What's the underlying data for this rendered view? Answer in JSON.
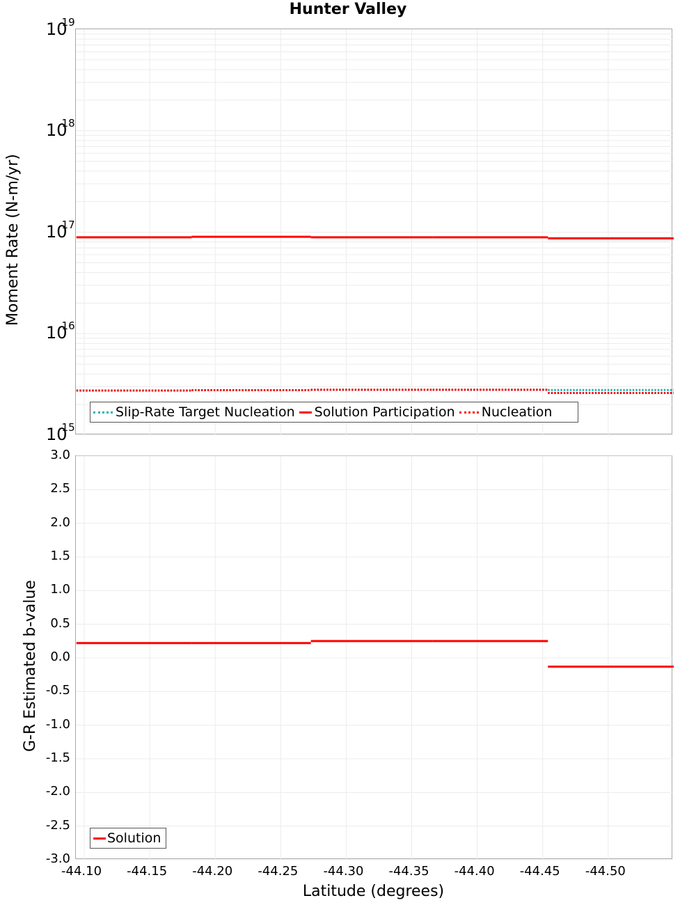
{
  "title": "Hunter Valley",
  "colors": {
    "solution": "#ff0000",
    "target": "#1fb4b4",
    "grid": "#ececec",
    "frame": "#a8a8a8"
  },
  "top_chart": {
    "ylabel": "Moment Rate (N-m/yr)",
    "yticks": [
      {
        "base": "10",
        "exp": "19"
      },
      {
        "base": "10",
        "exp": "18"
      },
      {
        "base": "10",
        "exp": "17"
      },
      {
        "base": "10",
        "exp": "16"
      },
      {
        "base": "10",
        "exp": "15"
      }
    ],
    "legend": [
      {
        "label": "Slip-Rate Target Nucleation"
      },
      {
        "label": "Solution Participation"
      },
      {
        "label": "Nucleation"
      }
    ]
  },
  "bottom_chart": {
    "ylabel": "G-R Estimated b-value",
    "yticks": [
      "3.0",
      "2.5",
      "2.0",
      "1.5",
      "1.0",
      "0.5",
      "0.0",
      "-0.5",
      "-1.0",
      "-1.5",
      "-2.0",
      "-2.5",
      "-3.0"
    ],
    "legend": [
      {
        "label": "Solution"
      }
    ]
  },
  "xaxis": {
    "label": "Latitude (degrees)",
    "ticks": [
      "-44.10",
      "-44.15",
      "-44.20",
      "-44.25",
      "-44.30",
      "-44.35",
      "-44.40",
      "-44.45",
      "-44.50"
    ]
  },
  "chart_data": [
    {
      "type": "line",
      "title": "Hunter Valley",
      "xlabel": "Latitude (degrees)",
      "ylabel": "Moment Rate (N-m/yr)",
      "yscale": "log",
      "ylim": [
        1000000000000000.0,
        1e+19
      ],
      "xlim": [
        -44.094,
        -44.55
      ],
      "x_ticks": [
        "-44.10",
        "-44.15",
        "-44.20",
        "-44.25",
        "-44.30",
        "-44.35",
        "-44.40",
        "-44.45",
        "-44.50"
      ],
      "y_ticks": [
        "1e15",
        "1e16",
        "1e17",
        "1e18",
        "1e19"
      ],
      "grid": true,
      "legend_position": "lower-left",
      "series": [
        {
          "name": "Slip-Rate Target Nucleation",
          "style": "dotted",
          "color": "#1fb4b4",
          "step_x": [
            -44.094,
            -44.182,
            -44.273,
            -44.366,
            -44.454,
            -44.55
          ],
          "values": [
            2750000000000000.0,
            2770000000000000.0,
            2800000000000000.0,
            2800000000000000.0,
            2780000000000000.0
          ]
        },
        {
          "name": "Solution Participation",
          "style": "solid",
          "color": "#ff0000",
          "step_x": [
            -44.094,
            -44.182,
            -44.273,
            -44.366,
            -44.454,
            -44.55
          ],
          "values": [
            8.9e+16,
            9e+16,
            8.9e+16,
            8.9e+16,
            8.7e+16
          ]
        },
        {
          "name": "Nucleation",
          "style": "dotted",
          "color": "#ff0000",
          "step_x": [
            -44.094,
            -44.182,
            -44.273,
            -44.366,
            -44.454,
            -44.55
          ],
          "values": [
            2750000000000000.0,
            2770000000000000.0,
            2800000000000000.0,
            2800000000000000.0,
            2600000000000000.0
          ]
        }
      ]
    },
    {
      "type": "line",
      "xlabel": "Latitude (degrees)",
      "ylabel": "G-R Estimated b-value",
      "ylim": [
        -3.0,
        3.0
      ],
      "xlim": [
        -44.094,
        -44.55
      ],
      "x_ticks": [
        "-44.10",
        "-44.15",
        "-44.20",
        "-44.25",
        "-44.30",
        "-44.35",
        "-44.40",
        "-44.45",
        "-44.50"
      ],
      "y_ticks": [
        "-3.0",
        "-2.5",
        "-2.0",
        "-1.5",
        "-1.0",
        "-0.5",
        "0.0",
        "0.5",
        "1.0",
        "1.5",
        "2.0",
        "2.5",
        "3.0"
      ],
      "grid": true,
      "legend_position": "lower-left",
      "series": [
        {
          "name": "Solution",
          "style": "solid",
          "color": "#ff0000",
          "step_x": [
            -44.094,
            -44.182,
            -44.273,
            -44.366,
            -44.454,
            -44.55
          ],
          "values": [
            0.22,
            0.22,
            0.25,
            0.25,
            -0.13
          ]
        }
      ]
    }
  ]
}
